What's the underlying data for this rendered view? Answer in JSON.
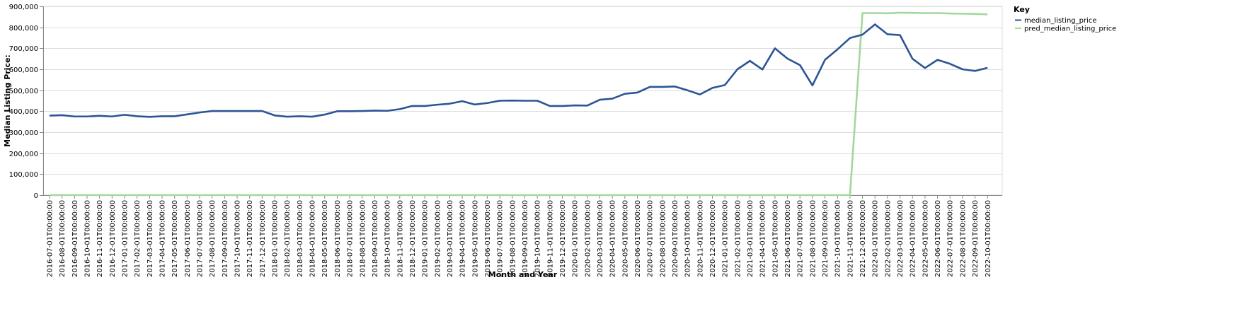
{
  "chart_data": {
    "type": "line",
    "title": "",
    "xlabel": "Month and Year",
    "ylabel": "Median Listing Price:",
    "ylim": [
      0,
      900000
    ],
    "y_ticks": [
      0,
      100000,
      200000,
      300000,
      400000,
      500000,
      600000,
      700000,
      800000,
      900000
    ],
    "y_tick_labels": [
      "0",
      "100,000",
      "200,000",
      "300,000",
      "400,000",
      "500,000",
      "600,000",
      "700,000",
      "800,000",
      "900,000"
    ],
    "grid": true,
    "legend_position": "top-right",
    "legend_title": "Key",
    "categories": [
      "2016-07-01T00:00:00",
      "2016-08-01T00:00:00",
      "2016-09-01T00:00:00",
      "2016-10-01T00:00:00",
      "2016-11-01T00:00:00",
      "2016-12-01T00:00:00",
      "2017-01-01T00:00:00",
      "2017-02-01T00:00:00",
      "2017-03-01T00:00:00",
      "2017-04-01T00:00:00",
      "2017-05-01T00:00:00",
      "2017-06-01T00:00:00",
      "2017-07-01T00:00:00",
      "2017-08-01T00:00:00",
      "2017-09-01T00:00:00",
      "2017-10-01T00:00:00",
      "2017-11-01T00:00:00",
      "2017-12-01T00:00:00",
      "2018-01-01T00:00:00",
      "2018-02-01T00:00:00",
      "2018-03-01T00:00:00",
      "2018-04-01T00:00:00",
      "2018-05-01T00:00:00",
      "2018-06-01T00:00:00",
      "2018-07-01T00:00:00",
      "2018-08-01T00:00:00",
      "2018-09-01T00:00:00",
      "2018-10-01T00:00:00",
      "2018-11-01T00:00:00",
      "2018-12-01T00:00:00",
      "2019-01-01T00:00:00",
      "2019-02-01T00:00:00",
      "2019-03-01T00:00:00",
      "2019-04-01T00:00:00",
      "2019-05-01T00:00:00",
      "2019-06-01T00:00:00",
      "2019-07-01T00:00:00",
      "2019-08-01T00:00:00",
      "2019-09-01T00:00:00",
      "2019-10-01T00:00:00",
      "2019-11-01T00:00:00",
      "2019-12-01T00:00:00",
      "2020-01-01T00:00:00",
      "2020-02-01T00:00:00",
      "2020-03-01T00:00:00",
      "2020-04-01T00:00:00",
      "2020-05-01T00:00:00",
      "2020-06-01T00:00:00",
      "2020-07-01T00:00:00",
      "2020-08-01T00:00:00",
      "2020-09-01T00:00:00",
      "2020-10-01T00:00:00",
      "2020-11-01T00:00:00",
      "2020-12-01T00:00:00",
      "2021-01-01T00:00:00",
      "2021-02-01T00:00:00",
      "2021-03-01T00:00:00",
      "2021-04-01T00:00:00",
      "2021-05-01T00:00:00",
      "2021-06-01T00:00:00",
      "2021-07-01T00:00:00",
      "2021-08-01T00:00:00",
      "2021-09-01T00:00:00",
      "2021-10-01T00:00:00",
      "2021-11-01T00:00:00",
      "2021-12-01T00:00:00",
      "2022-01-01T00:00:00",
      "2022-02-01T00:00:00",
      "2022-03-01T00:00:00",
      "2022-04-01T00:00:00",
      "2022-05-01T00:00:00",
      "2022-06-01T00:00:00",
      "2022-07-01T00:00:00",
      "2022-08-01T00:00:00",
      "2022-09-01T00:00:00",
      "2022-10-01T00:00:00"
    ],
    "series": [
      {
        "name": "median_listing_price",
        "color": "#2c5595",
        "values": [
          379000,
          381000,
          375000,
          375000,
          378000,
          375000,
          383000,
          376000,
          373000,
          376000,
          376000,
          385000,
          394000,
          401000,
          401000,
          401000,
          401000,
          401000,
          380000,
          374000,
          376000,
          374000,
          384000,
          400000,
          400000,
          401000,
          403000,
          402000,
          410000,
          425000,
          425000,
          431000,
          436000,
          448000,
          432000,
          439000,
          450000,
          451000,
          450000,
          450000,
          425000,
          425000,
          428000,
          427000,
          455000,
          460000,
          483000,
          489000,
          516000,
          516000,
          518000,
          500000,
          480000,
          511000,
          525000,
          600000,
          640000,
          599000,
          700000,
          651000,
          620000,
          523000,
          645000,
          695000,
          749000,
          765000,
          814000,
          767000,
          763000,
          650000,
          606000,
          645000,
          626000,
          600000,
          592000,
          607000
        ]
      },
      {
        "name": "pred_median_listing_price",
        "color": "#a1d99b",
        "values": [
          0,
          0,
          0,
          0,
          0,
          0,
          0,
          0,
          0,
          0,
          0,
          0,
          0,
          0,
          0,
          0,
          0,
          0,
          0,
          0,
          0,
          0,
          0,
          0,
          0,
          0,
          0,
          0,
          0,
          0,
          0,
          0,
          0,
          0,
          0,
          0,
          0,
          0,
          0,
          0,
          0,
          0,
          0,
          0,
          0,
          0,
          0,
          0,
          0,
          0,
          0,
          0,
          0,
          0,
          0,
          0,
          0,
          0,
          0,
          0,
          0,
          0,
          0,
          0,
          0,
          868000,
          868000,
          867000,
          870000,
          869000,
          868000,
          868000,
          866000,
          865000,
          864000,
          862000
        ]
      }
    ]
  }
}
